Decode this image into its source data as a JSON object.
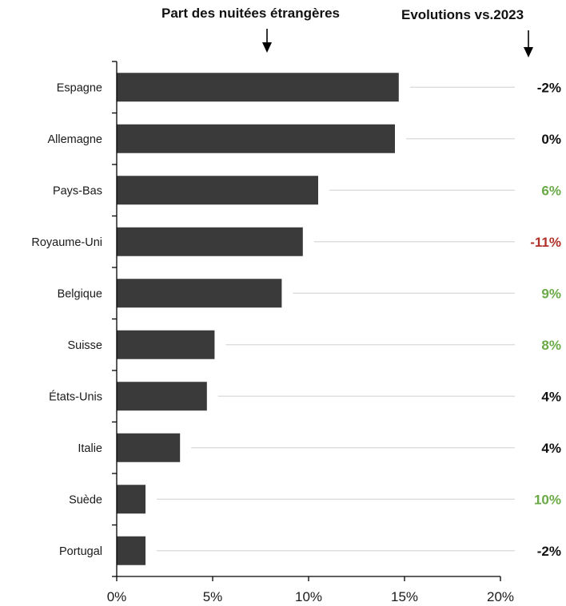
{
  "header": {
    "left_title": "Part des nuitées étrangères",
    "right_title": "Evolutions vs.2023"
  },
  "colors": {
    "bar": "#3a3a3a",
    "positive": "#6aaa46",
    "negative": "#b0302a",
    "neutral": "#111111",
    "leader": "#d9d9d9"
  },
  "chart_data": {
    "type": "bar",
    "orientation": "horizontal",
    "title": "Part des nuitées étrangères",
    "categories": [
      "Espagne",
      "Allemagne",
      "Pays-Bas",
      "Royaume-Uni",
      "Belgique",
      "Suisse",
      "États-Unis",
      "Italie",
      "Suède",
      "Portugal"
    ],
    "values": [
      14.7,
      14.5,
      10.5,
      9.7,
      8.6,
      5.1,
      4.7,
      3.3,
      1.5,
      1.5
    ],
    "value_unit": "%",
    "xlim": [
      0,
      20
    ],
    "xticks": [
      "0%",
      "5%",
      "10%",
      "15%",
      "20%"
    ],
    "grid": false,
    "annotations": {
      "title": "Evolutions vs.2023",
      "labels": [
        "-2%",
        "0%",
        "6%",
        "-11%",
        "9%",
        "8%",
        "4%",
        "4%",
        "10%",
        "-2%"
      ],
      "colors": [
        "neutral",
        "neutral",
        "positive",
        "negative",
        "positive",
        "positive",
        "neutral",
        "neutral",
        "positive",
        "neutral"
      ]
    }
  }
}
